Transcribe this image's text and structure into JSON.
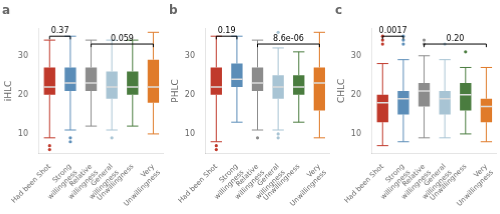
{
  "chart_data": [
    {
      "type": "box",
      "title": "a",
      "ylabel": "iHLC",
      "categories": [
        "Had been Shot",
        "Strong\nwillingness",
        "Relative\nwillingness",
        "General\nwillingness",
        "Unwillingness",
        "Very\nUnwillingness"
      ],
      "colors": [
        "#C0392B",
        "#5B8DB8",
        "#8C8C8C",
        "#A8C4D4",
        "#4A7C3F",
        "#E07B2A"
      ],
      "boxes": [
        {
          "med": 22,
          "q1": 20,
          "q3": 27,
          "whislo": 9,
          "whishi": 34,
          "fliers_lo": [
            7,
            6
          ],
          "fliers_hi": []
        },
        {
          "med": 23,
          "q1": 21,
          "q3": 27,
          "whislo": 11,
          "whishi": 35,
          "fliers_lo": [
            8,
            9
          ],
          "fliers_hi": []
        },
        {
          "med": 23,
          "q1": 21,
          "q3": 27,
          "whislo": 12,
          "whishi": 34,
          "fliers_lo": [],
          "fliers_hi": []
        },
        {
          "med": 22,
          "q1": 19,
          "q3": 26,
          "whislo": 11,
          "whishi": 34,
          "fliers_lo": [
            9
          ],
          "fliers_hi": []
        },
        {
          "med": 22,
          "q1": 20,
          "q3": 26,
          "whislo": 12,
          "whishi": 34,
          "fliers_lo": [],
          "fliers_hi": []
        },
        {
          "med": 22,
          "q1": 18,
          "q3": 29,
          "whislo": 10,
          "whishi": 36,
          "fliers_lo": [],
          "fliers_hi": []
        }
      ],
      "annotations": [
        {
          "from": "Had been Shot",
          "to": "Strong\nwillingness",
          "y": 35.0,
          "text": "0.37"
        },
        {
          "from": "Relative\nwillingness",
          "to": "Very\nUnwillingness",
          "y": 33.0,
          "text": "0.059"
        }
      ],
      "ylim": [
        5,
        37
      ],
      "yticks": [
        10,
        20,
        30
      ],
      "grid": false
    },
    {
      "type": "box",
      "title": "b",
      "ylabel": "PHLC",
      "categories": [
        "Had been Shot",
        "Strong\nwillingness",
        "Relative\nwillingness",
        "General\nwillingness",
        "Unwillingness",
        "Very\nUnwillingness"
      ],
      "colors": [
        "#C0392B",
        "#5B8DB8",
        "#8C8C8C",
        "#A8C4D4",
        "#4A7C3F",
        "#E07B2A"
      ],
      "boxes": [
        {
          "med": 22,
          "q1": 20,
          "q3": 27,
          "whislo": 8,
          "whishi": 35,
          "fliers_lo": [
            6,
            7
          ],
          "fliers_hi": []
        },
        {
          "med": 24,
          "q1": 22,
          "q3": 28,
          "whislo": 13,
          "whishi": 35,
          "fliers_lo": [],
          "fliers_hi": []
        },
        {
          "med": 23,
          "q1": 21,
          "q3": 27,
          "whislo": 11,
          "whishi": 34,
          "fliers_lo": [
            9
          ],
          "fliers_hi": []
        },
        {
          "med": 22,
          "q1": 19,
          "q3": 25,
          "whislo": 11,
          "whishi": 32,
          "fliers_lo": [
            9,
            10
          ],
          "fliers_hi": [
            36
          ]
        },
        {
          "med": 22,
          "q1": 20,
          "q3": 25,
          "whislo": 13,
          "whishi": 31,
          "fliers_lo": [],
          "fliers_hi": []
        },
        {
          "med": 23,
          "q1": 16,
          "q3": 27,
          "whislo": 9,
          "whishi": 36,
          "fliers_lo": [],
          "fliers_hi": []
        }
      ],
      "annotations": [
        {
          "from": "Had been Shot",
          "to": "Strong\nwillingness",
          "y": 35.0,
          "text": "0.19"
        },
        {
          "from": "Relative\nwillingness",
          "to": "Very\nUnwillingness",
          "y": 33.0,
          "text": "8.6e-06"
        }
      ],
      "ylim": [
        5,
        37
      ],
      "yticks": [
        10,
        20,
        30
      ],
      "grid": false
    },
    {
      "type": "box",
      "title": "c",
      "ylabel": "CHLC",
      "categories": [
        "Had been Shot",
        "Strong\nwillingness",
        "Relative\nwillingness",
        "General\nwillingness",
        "Unwillingness",
        "Very\nUnwillingness"
      ],
      "colors": [
        "#C0392B",
        "#5B8DB8",
        "#8C8C8C",
        "#A8C4D4",
        "#4A7C3F",
        "#E07B2A"
      ],
      "boxes": [
        {
          "med": 18,
          "q1": 13,
          "q3": 20,
          "whislo": 7,
          "whishi": 28,
          "fliers_lo": [],
          "fliers_hi": [
            33,
            34,
            35
          ]
        },
        {
          "med": 19,
          "q1": 15,
          "q3": 21,
          "whislo": 8,
          "whishi": 29,
          "fliers_lo": [],
          "fliers_hi": [
            33,
            34,
            35
          ]
        },
        {
          "med": 21,
          "q1": 17,
          "q3": 23,
          "whislo": 9,
          "whishi": 30,
          "fliers_lo": [],
          "fliers_hi": [
            33,
            34
          ]
        },
        {
          "med": 19,
          "q1": 15,
          "q3": 21,
          "whislo": 9,
          "whishi": 29,
          "fliers_lo": [],
          "fliers_hi": [
            33
          ]
        },
        {
          "med": 20,
          "q1": 16,
          "q3": 23,
          "whislo": 10,
          "whishi": 27,
          "fliers_lo": [],
          "fliers_hi": [
            31
          ]
        },
        {
          "med": 17,
          "q1": 13,
          "q3": 19,
          "whislo": 8,
          "whishi": 27,
          "fliers_lo": [],
          "fliers_hi": []
        }
      ],
      "annotations": [
        {
          "from": "Had been Shot",
          "to": "Strong\nwillingness",
          "y": 35.0,
          "text": "0.0017"
        },
        {
          "from": "Relative\nwillingness",
          "to": "Very\nUnwillingness",
          "y": 33.0,
          "text": "0.20"
        }
      ],
      "ylim": [
        5,
        37
      ],
      "yticks": [
        10,
        20,
        30
      ],
      "grid": false
    }
  ]
}
